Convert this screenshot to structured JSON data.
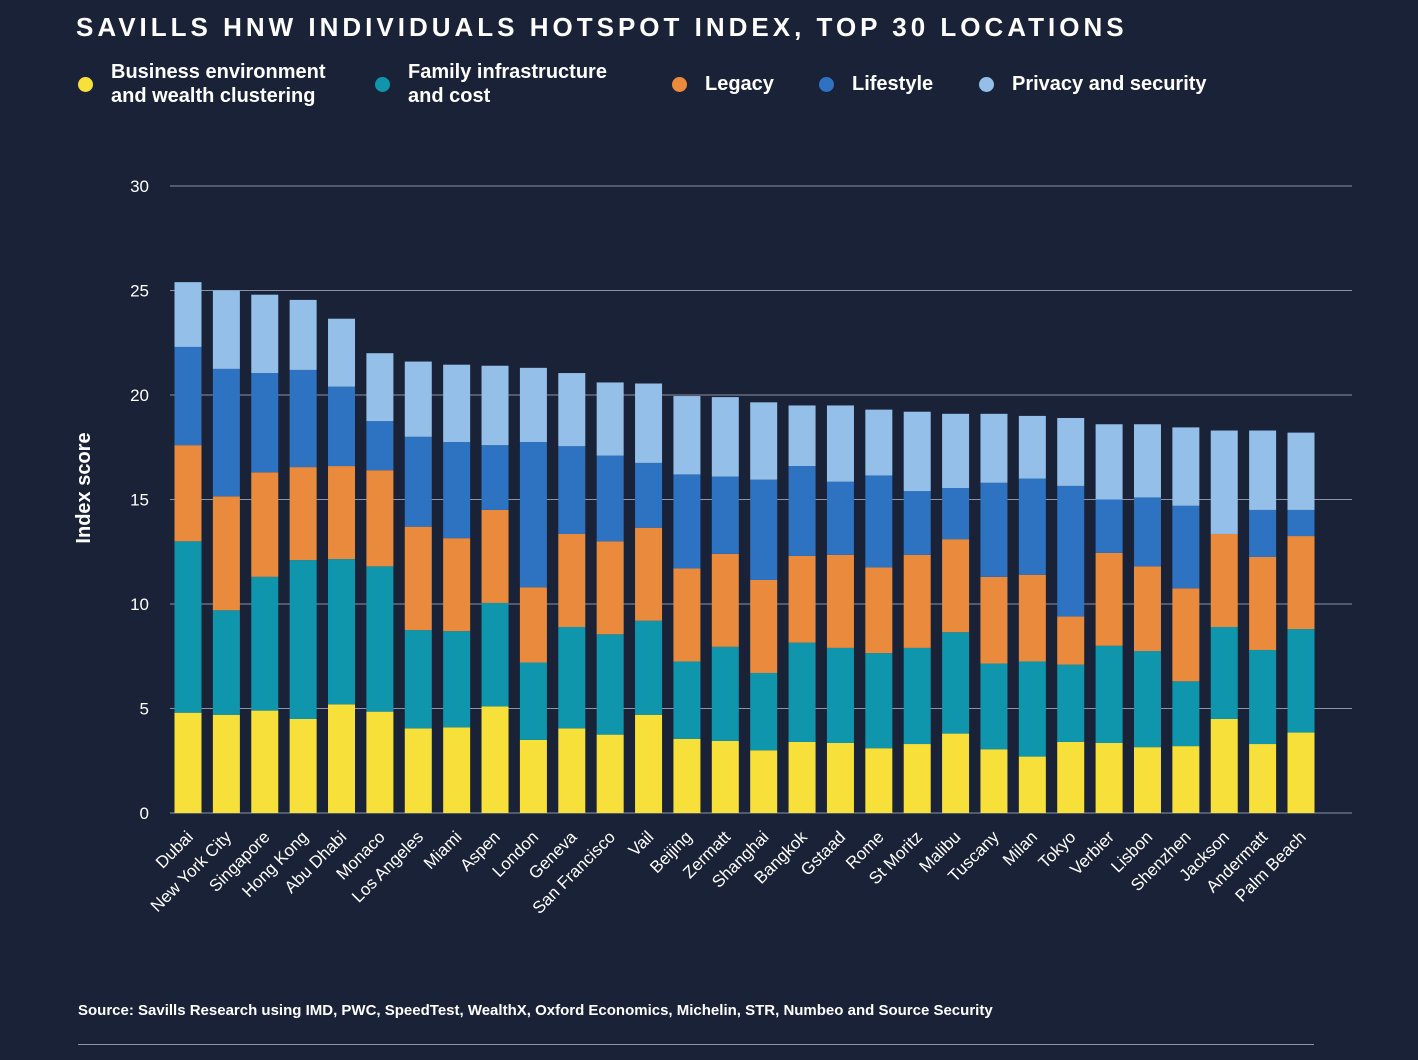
{
  "title": "SAVILLS HNW INDIVIDUALS HOTSPOT INDEX, TOP 30 LOCATIONS",
  "source": "Source: Savills Research using IMD, PWC, SpeedTest, WealthX, Oxford Economics, Michelin, STR, Numbeo and Source Security",
  "chart_data": {
    "type": "bar",
    "stacked": true,
    "ylabel": "Index score",
    "xlabel": "",
    "ylim": [
      0,
      30
    ],
    "yticks": [
      0,
      5,
      10,
      15,
      20,
      25,
      30
    ],
    "grid": true,
    "legend_position": "top",
    "categories": [
      "Dubai",
      "New York City",
      "Singapore",
      "Hong Kong",
      "Abu Dhabi",
      "Monaco",
      "Los Angeles",
      "Miami",
      "Aspen",
      "London",
      "Geneva",
      "San Francisco",
      "Vail",
      "Beijing",
      "Zermatt",
      "Shanghai",
      "Bangkok",
      "Gstaad",
      "Rome",
      "St Moritz",
      "Malibu",
      "Tuscany",
      "Milan",
      "Tokyo",
      "Verbier",
      "Lisbon",
      "Shenzhen",
      "Jackson",
      "Andermatt",
      "Palm Beach"
    ],
    "series": [
      {
        "name": "Business environment\nand wealth clustering",
        "color": "#f7e03a",
        "values": [
          4.8,
          4.7,
          4.9,
          4.5,
          5.2,
          4.85,
          4.05,
          4.1,
          5.1,
          3.5,
          4.05,
          3.75,
          4.7,
          3.55,
          3.45,
          3.0,
          3.4,
          3.35,
          3.1,
          3.3,
          3.8,
          3.05,
          2.7,
          3.4,
          3.35,
          3.15,
          3.2,
          4.5,
          3.3,
          3.85
        ]
      },
      {
        "name": "Family infrastructure\nand cost",
        "color": "#0f96ad",
        "values": [
          8.2,
          5.0,
          6.4,
          7.6,
          6.95,
          6.95,
          4.7,
          4.6,
          4.95,
          3.7,
          4.85,
          4.8,
          4.5,
          3.7,
          4.5,
          3.7,
          4.75,
          4.55,
          4.55,
          4.6,
          4.85,
          4.1,
          4.55,
          3.7,
          4.65,
          4.6,
          3.1,
          4.4,
          4.5,
          4.95
        ]
      },
      {
        "name": "Legacy",
        "color": "#ea8a3c",
        "values": [
          4.6,
          5.45,
          5.0,
          4.45,
          4.45,
          4.6,
          4.95,
          4.45,
          4.45,
          3.6,
          4.45,
          4.45,
          4.45,
          4.45,
          4.45,
          4.45,
          4.15,
          4.45,
          4.1,
          4.45,
          4.45,
          4.15,
          4.15,
          2.3,
          4.45,
          4.05,
          4.45,
          4.45,
          4.45,
          4.45
        ]
      },
      {
        "name": "Lifestyle",
        "color": "#2e73c2",
        "values": [
          4.7,
          6.1,
          4.75,
          4.65,
          3.8,
          2.35,
          4.3,
          4.6,
          3.1,
          6.95,
          4.2,
          4.1,
          3.1,
          4.5,
          3.7,
          4.8,
          4.3,
          3.5,
          4.4,
          3.05,
          2.45,
          4.5,
          4.6,
          6.25,
          2.55,
          3.3,
          3.95,
          0.0,
          2.25,
          1.25
        ]
      },
      {
        "name": "Privacy and security",
        "color": "#93bfe8",
        "values": [
          3.1,
          3.75,
          3.75,
          3.35,
          3.25,
          3.25,
          3.6,
          3.7,
          3.8,
          3.55,
          3.5,
          3.5,
          3.8,
          3.75,
          3.8,
          3.7,
          2.9,
          3.65,
          3.15,
          3.8,
          3.55,
          3.3,
          3.0,
          3.25,
          3.6,
          3.5,
          3.75,
          4.95,
          3.8,
          3.7
        ]
      }
    ]
  }
}
